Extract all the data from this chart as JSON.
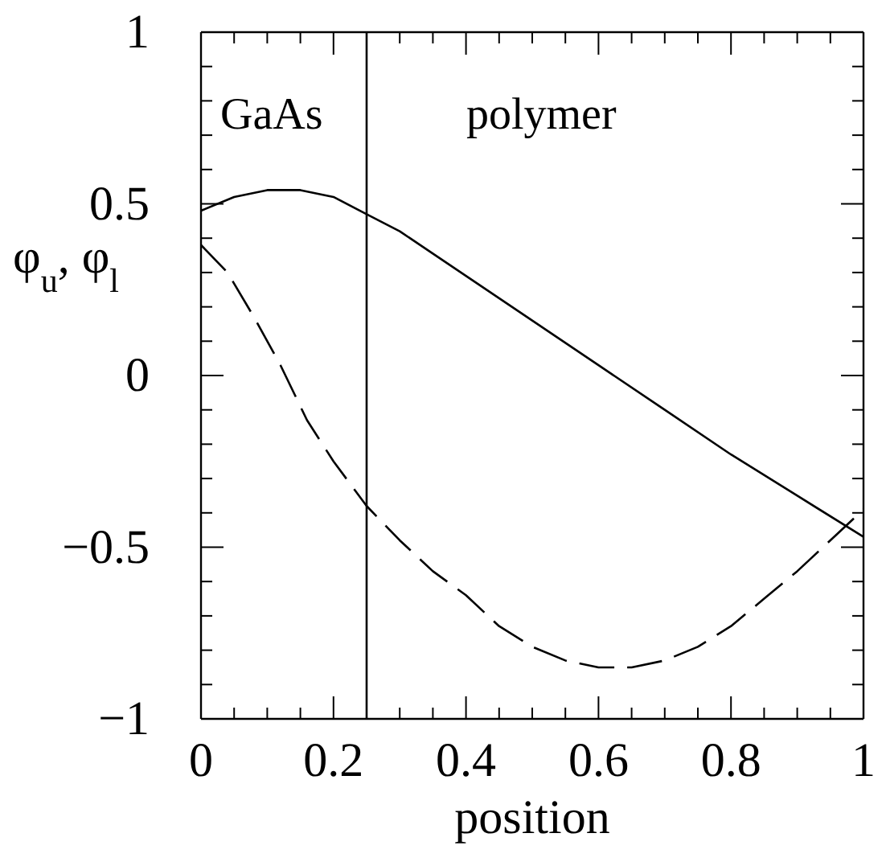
{
  "chart_data": {
    "type": "line",
    "xlabel": "position",
    "ylabel": "φ$_{u}$,  φ$_{l}$",
    "xlim": [
      0,
      1
    ],
    "ylim": [
      -1,
      1
    ],
    "xticks": [
      0,
      {
        "value": 0.05,
        "label": null
      },
      {
        "value": 0.1,
        "label": null
      },
      {
        "value": 0.15,
        "label": null
      },
      0.2,
      {
        "value": 0.25,
        "label": null
      },
      {
        "value": 0.3,
        "label": null
      },
      {
        "value": 0.35,
        "label": null
      },
      0.4,
      {
        "value": 0.45,
        "label": null
      },
      {
        "value": 0.5,
        "label": null
      },
      {
        "value": 0.55,
        "label": null
      },
      0.6,
      {
        "value": 0.65,
        "label": null
      },
      {
        "value": 0.7,
        "label": null
      },
      {
        "value": 0.75,
        "label": null
      },
      0.8,
      {
        "value": 0.85,
        "label": null
      },
      {
        "value": 0.9,
        "label": null
      },
      {
        "value": 0.95,
        "label": null
      },
      1
    ],
    "yticks": [
      {
        "value": -1,
        "label": "−1"
      },
      {
        "value": -0.9,
        "label": null
      },
      {
        "value": -0.8,
        "label": null
      },
      {
        "value": -0.7,
        "label": null
      },
      {
        "value": -0.6,
        "label": null
      },
      {
        "value": -0.5,
        "label": "−0.5"
      },
      {
        "value": -0.4,
        "label": null
      },
      {
        "value": -0.3,
        "label": null
      },
      {
        "value": -0.2,
        "label": null
      },
      {
        "value": -0.1,
        "label": null
      },
      0,
      {
        "value": 0.1,
        "label": null
      },
      {
        "value": 0.2,
        "label": null
      },
      {
        "value": 0.3,
        "label": null
      },
      {
        "value": 0.4,
        "label": null
      },
      0.5,
      {
        "value": 0.6,
        "label": null
      },
      {
        "value": 0.7,
        "label": null
      },
      {
        "value": 0.8,
        "label": null
      },
      {
        "value": 0.9,
        "label": null
      },
      1
    ],
    "grid": false,
    "marker": "none",
    "ref_lines": [
      {
        "axis": "x",
        "value": 0.25,
        "color": "#000000"
      }
    ],
    "annotations": [
      "GaAs",
      "polymer"
    ],
    "x": [
      0,
      0.05,
      0.1,
      0.15,
      0.2,
      0.25,
      0.3,
      0.35,
      0.4,
      0.5,
      0.6,
      0.7,
      0.8,
      0.9,
      1
    ],
    "series": [
      {
        "color": "#000000",
        "line_style": "solid",
        "values": [
          0.48,
          0.52,
          0.54,
          0.54,
          0.52,
          0.47,
          0.42,
          0.355,
          0.29,
          0.16,
          0.03,
          -0.1,
          -0.23,
          -0.35,
          -0.47
        ]
      },
      {
        "color": "#000000",
        "line_style": "dashed",
        "x": [
          0,
          0.04,
          0.08,
          0.12,
          0.16,
          0.2,
          0.25,
          0.3,
          0.35,
          0.4,
          0.45,
          0.5,
          0.55,
          0.6,
          0.65,
          0.7,
          0.75,
          0.8,
          0.85,
          0.9,
          0.95,
          1
        ],
        "values": [
          0.38,
          0.3,
          0.17,
          0.03,
          -0.13,
          -0.25,
          -0.38,
          -0.48,
          -0.57,
          -0.64,
          -0.73,
          -0.79,
          -0.83,
          -0.85,
          -0.85,
          -0.83,
          -0.79,
          -0.73,
          -0.65,
          -0.57,
          -0.48,
          -0.39
        ]
      }
    ]
  }
}
